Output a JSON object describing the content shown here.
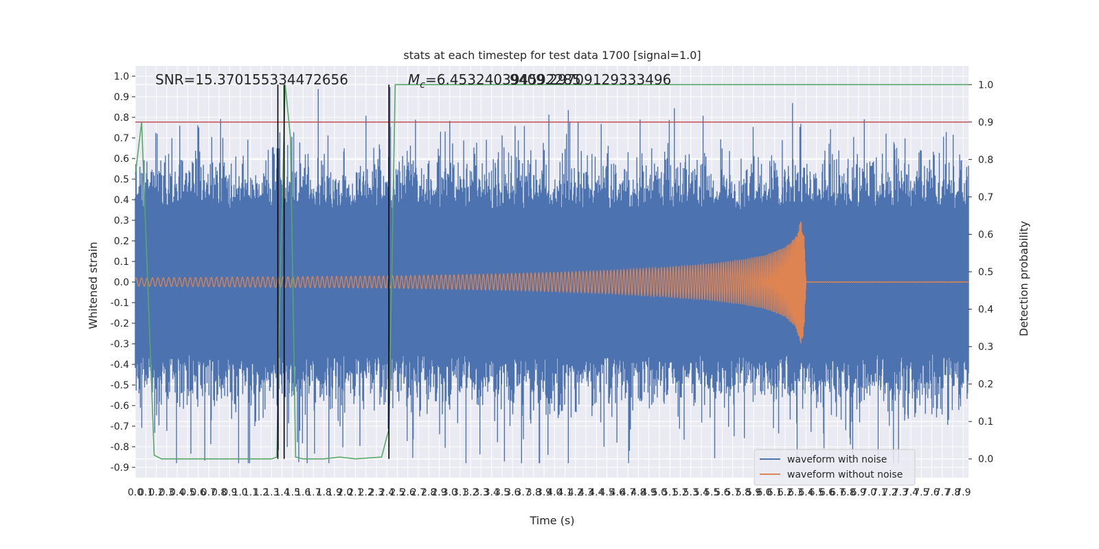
{
  "chart_data": {
    "type": "line",
    "title": "stats at each timestep for test data 1700 [signal=1.0]",
    "xlabel": "Time (s)",
    "ylabel_left": "Whitened strain",
    "ylabel_right": "Detection probability",
    "xlim": [
      0.0,
      7.95
    ],
    "ylim_left": [
      -0.95,
      1.05
    ],
    "ylim_right": [
      -0.05,
      1.05
    ],
    "grid": true,
    "x_ticks": [
      0.0,
      0.1,
      0.2,
      0.3,
      0.4,
      0.5,
      0.6,
      0.7,
      0.8,
      0.9,
      1.0,
      1.1,
      1.2,
      1.3,
      1.4,
      1.5,
      1.6,
      1.7,
      1.8,
      1.9,
      2.0,
      2.1,
      2.2,
      2.3,
      2.4,
      2.5,
      2.6,
      2.7,
      2.8,
      2.9,
      3.0,
      3.1,
      3.2,
      3.3,
      3.4,
      3.5,
      3.6,
      3.7,
      3.8,
      3.9,
      4.0,
      4.1,
      4.2,
      4.3,
      4.4,
      4.5,
      4.6,
      4.7,
      4.8,
      4.9,
      5.0,
      5.1,
      5.2,
      5.3,
      5.4,
      5.5,
      5.6,
      5.7,
      5.8,
      5.9,
      6.0,
      6.1,
      6.2,
      6.3,
      6.4,
      6.5,
      6.6,
      6.7,
      6.8,
      6.9,
      7.0,
      7.1,
      7.2,
      7.3,
      7.4,
      7.5,
      7.6,
      7.7,
      7.8,
      7.9
    ],
    "y_ticks_left": [
      1.0,
      0.9,
      0.8,
      0.7,
      0.6,
      0.5,
      0.4,
      0.3,
      0.2,
      0.1,
      0.0,
      -0.1,
      -0.2,
      -0.3,
      -0.4,
      -0.5,
      -0.6,
      -0.7,
      -0.8,
      -0.9
    ],
    "y_ticks_right": [
      1.0,
      0.9,
      0.8,
      0.7,
      0.6,
      0.5,
      0.4,
      0.3,
      0.2,
      0.1,
      0.0
    ],
    "annotations": {
      "snr": "SNR=15.370155334472656",
      "mc_prefix": "M",
      "mc_sub": "c",
      "mc_value": "=6.453240394592285",
      "overlap": "9409.29709129333496"
    },
    "threshold": {
      "value": 0.9,
      "axis": "right",
      "color": "#c44e52"
    },
    "vertical_lines": [
      1.36,
      1.42,
      2.42
    ],
    "series": [
      {
        "name": "waveform with noise",
        "axis": "left",
        "color": "#4c72b0",
        "envelope": {
          "upper": 0.35,
          "lower": -0.35
        }
      },
      {
        "name": "waveform without noise",
        "axis": "left",
        "color": "#dd8452",
        "x": [
          0.0,
          0.5,
          1.0,
          1.5,
          2.0,
          2.5,
          3.0,
          3.5,
          4.0,
          4.5,
          5.0,
          5.5,
          5.8,
          6.0,
          6.2,
          6.3,
          6.35,
          6.38,
          6.4
        ],
        "amplitude": [
          0.02,
          0.022,
          0.024,
          0.026,
          0.028,
          0.03,
          0.035,
          0.04,
          0.047,
          0.056,
          0.07,
          0.09,
          0.11,
          0.13,
          0.17,
          0.22,
          0.3,
          0.25,
          0.005
        ]
      },
      {
        "name": "Detection probability",
        "axis": "right",
        "color": "#55a868",
        "x": [
          0.0,
          0.06,
          0.18,
          0.25,
          0.5,
          1.0,
          1.3,
          1.35,
          1.38,
          1.43,
          1.48,
          1.53,
          1.6,
          1.8,
          1.95,
          2.1,
          2.35,
          2.42,
          2.48,
          5.0,
          7.95
        ],
        "y": [
          0.76,
          0.9,
          0.01,
          0.0,
          0.0,
          0.0,
          0.0,
          0.005,
          0.45,
          1.0,
          0.86,
          0.005,
          0.0,
          0.0,
          0.005,
          0.0,
          0.005,
          0.08,
          1.0,
          1.0,
          1.0
        ]
      }
    ],
    "legend": {
      "placement": "lower-right",
      "entries": [
        "waveform with noise",
        "waveform without noise"
      ]
    }
  }
}
